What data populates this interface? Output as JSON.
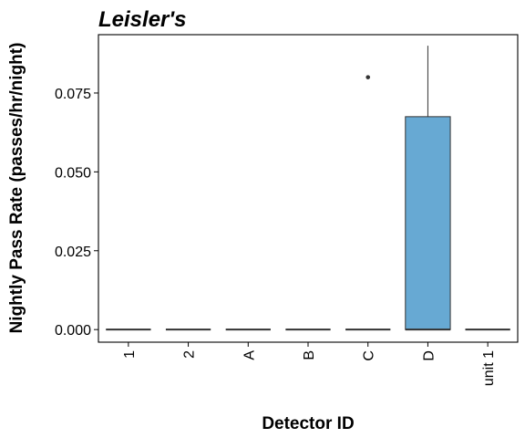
{
  "chart_data": {
    "type": "boxplot",
    "title": "Leisler's",
    "xlabel": "Detector ID",
    "ylabel": "Nightly Pass Rate (passes/hr/night)",
    "ylim": [
      -0.004,
      0.0935
    ],
    "yticks": [
      "0.000",
      "0.025",
      "0.050",
      "0.075"
    ],
    "grid": false,
    "categories": [
      "1",
      "2",
      "A",
      "B",
      "C",
      "D",
      "unit 1"
    ],
    "boxes": [
      {
        "category": "1",
        "min": 0,
        "q1": 0,
        "median": 0,
        "q3": 0,
        "max": 0,
        "outliers": []
      },
      {
        "category": "2",
        "min": 0,
        "q1": 0,
        "median": 0,
        "q3": 0,
        "max": 0,
        "outliers": []
      },
      {
        "category": "A",
        "min": 0,
        "q1": 0,
        "median": 0,
        "q3": 0,
        "max": 0,
        "outliers": []
      },
      {
        "category": "B",
        "min": 0,
        "q1": 0,
        "median": 0,
        "q3": 0,
        "max": 0,
        "outliers": []
      },
      {
        "category": "C",
        "min": 0,
        "q1": 0,
        "median": 0,
        "q3": 0,
        "max": 0,
        "outliers": [
          0.08
        ]
      },
      {
        "category": "D",
        "min": 0,
        "q1": 0,
        "median": 0,
        "q3": 0.0675,
        "max": 0.09,
        "outliers": []
      },
      {
        "category": "unit 1",
        "min": 0,
        "q1": 0,
        "median": 0,
        "q3": 0,
        "max": 0,
        "outliers": []
      }
    ],
    "colors": {
      "box_fill": "#67a9d3",
      "box_stroke": "#333333",
      "panel_border": "#000000",
      "outlier": "#333333"
    }
  }
}
